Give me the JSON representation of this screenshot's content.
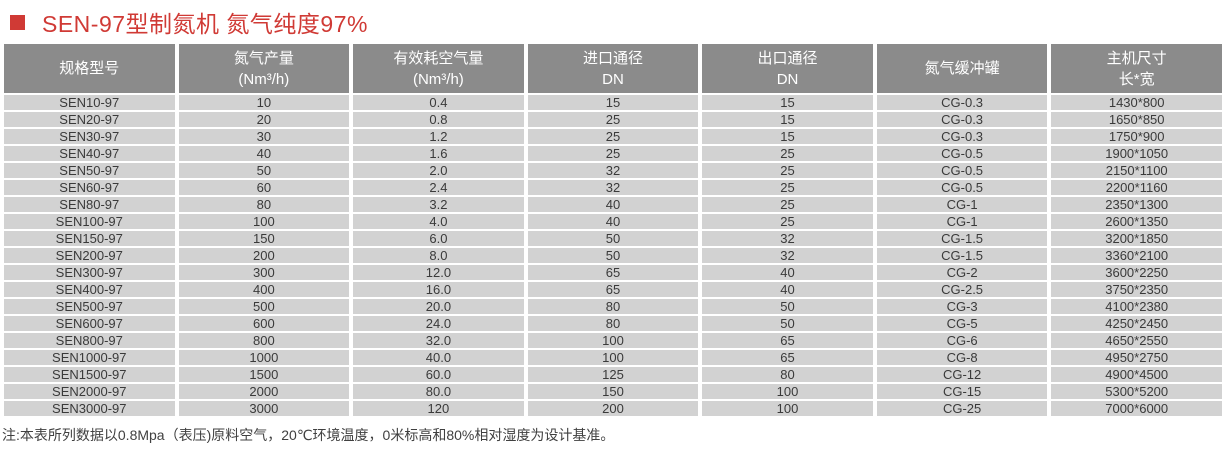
{
  "title": {
    "text": "SEN-97型制氮机 氮气纯度97%"
  },
  "colors": {
    "accent_red": "#d03a35",
    "header_bg": "#8b8b8b",
    "row_bg": "#d2d2d2",
    "header_text": "#ffffff",
    "body_text": "#3a3a3a"
  },
  "table": {
    "headers": [
      "规格型号",
      "氮气产量\n(Nm³/h)",
      "有效耗空气量\n(Nm³/h)",
      "进口通径\nDN",
      "出口通径\nDN",
      "氮气缓冲罐",
      "主机尺寸\n长*宽"
    ],
    "rows": [
      [
        "SEN10-97",
        "10",
        "0.4",
        "15",
        "15",
        "CG-0.3",
        "1430*800"
      ],
      [
        "SEN20-97",
        "20",
        "0.8",
        "25",
        "15",
        "CG-0.3",
        "1650*850"
      ],
      [
        "SEN30-97",
        "30",
        "1.2",
        "25",
        "15",
        "CG-0.3",
        "1750*900"
      ],
      [
        "SEN40-97",
        "40",
        "1.6",
        "25",
        "25",
        "CG-0.5",
        "1900*1050"
      ],
      [
        "SEN50-97",
        "50",
        "2.0",
        "32",
        "25",
        "CG-0.5",
        "2150*1100"
      ],
      [
        "SEN60-97",
        "60",
        "2.4",
        "32",
        "25",
        "CG-0.5",
        "2200*1160"
      ],
      [
        "SEN80-97",
        "80",
        "3.2",
        "40",
        "25",
        "CG-1",
        "2350*1300"
      ],
      [
        "SEN100-97",
        "100",
        "4.0",
        "40",
        "25",
        "CG-1",
        "2600*1350"
      ],
      [
        "SEN150-97",
        "150",
        "6.0",
        "50",
        "32",
        "CG-1.5",
        "3200*1850"
      ],
      [
        "SEN200-97",
        "200",
        "8.0",
        "50",
        "32",
        "CG-1.5",
        "3360*2100"
      ],
      [
        "SEN300-97",
        "300",
        "12.0",
        "65",
        "40",
        "CG-2",
        "3600*2250"
      ],
      [
        "SEN400-97",
        "400",
        "16.0",
        "65",
        "40",
        "CG-2.5",
        "3750*2350"
      ],
      [
        "SEN500-97",
        "500",
        "20.0",
        "80",
        "50",
        "CG-3",
        "4100*2380"
      ],
      [
        "SEN600-97",
        "600",
        "24.0",
        "80",
        "50",
        "CG-5",
        "4250*2450"
      ],
      [
        "SEN800-97",
        "800",
        "32.0",
        "100",
        "65",
        "CG-6",
        "4650*2550"
      ],
      [
        "SEN1000-97",
        "1000",
        "40.0",
        "100",
        "65",
        "CG-8",
        "4950*2750"
      ],
      [
        "SEN1500-97",
        "1500",
        "60.0",
        "125",
        "80",
        "CG-12",
        "4900*4500"
      ],
      [
        "SEN2000-97",
        "2000",
        "80.0",
        "150",
        "100",
        "CG-15",
        "5300*5200"
      ],
      [
        "SEN3000-97",
        "3000",
        "120",
        "200",
        "100",
        "CG-25",
        "7000*6000"
      ]
    ]
  },
  "note": "注:本表所列数据以0.8Mpa（表压)原料空气，20℃环境温度，0米标高和80%相对湿度为设计基准。"
}
